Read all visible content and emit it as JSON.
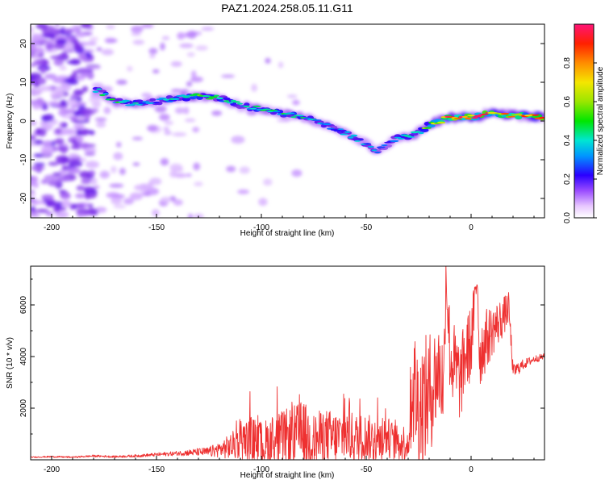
{
  "title": "PAZ1.2024.258.05.11.G11",
  "chart_data": [
    {
      "type": "heatmap",
      "xlabel": "Height of straight line (km)",
      "ylabel": "Frequency (Hz)",
      "xlim": [
        -210,
        35
      ],
      "ylim": [
        -25,
        25
      ],
      "xticks": [
        -200,
        -150,
        -100,
        -50,
        0
      ],
      "yticks": [
        -20,
        -10,
        0,
        10,
        20
      ],
      "colorbar": {
        "label": "Normalized spectral amplitude",
        "ticks": [
          "0.0",
          "0.2",
          "0.4",
          "0.6",
          "0.8"
        ],
        "range": [
          0,
          1
        ]
      },
      "ridge": {
        "x": [
          -178,
          -170,
          -160,
          -150,
          -140,
          -130,
          -120,
          -110,
          -100,
          -90,
          -80,
          -70,
          -60,
          -50,
          -45,
          -40,
          -35,
          -30,
          -25,
          -20,
          -15,
          -10,
          -5,
          0,
          10,
          20,
          35
        ],
        "freq": [
          8,
          5,
          4.5,
          5,
          6,
          6.5,
          6,
          4,
          3,
          2,
          1,
          -1,
          -3,
          -6,
          -8,
          -6,
          -4,
          -4,
          -3,
          -1,
          0,
          1,
          1,
          1,
          2,
          1.5,
          1
        ],
        "amp": [
          0.4,
          0.45,
          0.4,
          0.35,
          0.45,
          0.5,
          0.4,
          0.4,
          0.45,
          0.45,
          0.4,
          0.35,
          0.35,
          0.35,
          0.3,
          0.3,
          0.35,
          0.4,
          0.45,
          0.55,
          0.7,
          0.9,
          1.0,
          0.95,
          0.8,
          0.7,
          0.85
        ]
      }
    },
    {
      "type": "line",
      "xlabel": "Height of straight line (km)",
      "ylabel": "SNR (10 * v/v)",
      "xlim": [
        -210,
        35
      ],
      "ylim": [
        0,
        7500
      ],
      "xticks": [
        -200,
        -150,
        -100,
        -50,
        0
      ],
      "yticks": [
        2000,
        4000,
        6000
      ],
      "series": [
        {
          "color": "#ee3030",
          "x": [
            -210,
            -200,
            -190,
            -180,
            -170,
            -160,
            -150,
            -140,
            -130,
            -125,
            -120,
            -115,
            -110,
            -105,
            -100,
            -95,
            -90,
            -85,
            -80,
            -75,
            -70,
            -65,
            -60,
            -55,
            -50,
            -45,
            -40,
            -35,
            -30,
            -28,
            -25,
            -20,
            -18,
            -15,
            -13,
            -12,
            -10,
            -5,
            -3,
            0,
            3,
            4,
            6,
            10,
            15,
            18,
            20,
            25,
            30,
            35
          ],
          "y": [
            100,
            120,
            100,
            150,
            120,
            150,
            200,
            250,
            300,
            300,
            400,
            500,
            700,
            800,
            600,
            700,
            800,
            900,
            1000,
            700,
            900,
            800,
            1000,
            800,
            900,
            700,
            900,
            600,
            700,
            3000,
            2000,
            2500,
            3000,
            3500,
            2800,
            7400,
            4000,
            3000,
            4000,
            4500,
            7100,
            4000,
            4500,
            5000,
            5500,
            5900,
            3400,
            3700,
            3900,
            4000
          ],
          "envelope": [
            20,
            30,
            30,
            40,
            40,
            50,
            70,
            90,
            150,
            200,
            300,
            500,
            700,
            900,
            900,
            1000,
            1100,
            1200,
            1300,
            1100,
            1100,
            1100,
            1000,
            1000,
            900,
            900,
            800,
            700,
            800,
            2500,
            2500,
            2500,
            2200,
            2000,
            2000,
            1000,
            1800,
            1600,
            1500,
            1500,
            600,
            1300,
            1300,
            1000,
            800,
            600,
            300,
            200,
            150,
            120
          ]
        }
      ]
    }
  ]
}
